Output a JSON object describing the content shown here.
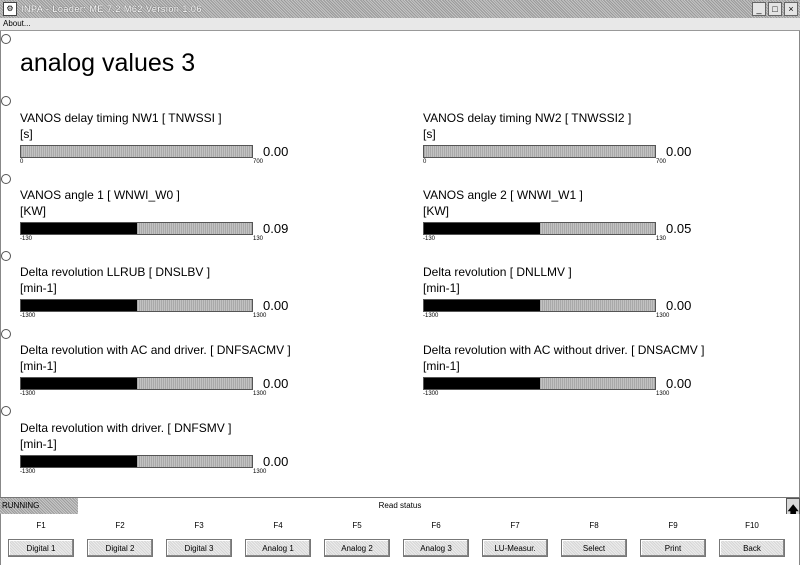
{
  "window": {
    "title": "INPA - Loader:  ME 7.2 M62 Version 1.06",
    "icon": "inpa-app-icon",
    "minimize": "_",
    "maximize": "□",
    "close": "×"
  },
  "menu": {
    "about": "About..."
  },
  "page": {
    "title": "analog values 3"
  },
  "measurements": [
    {
      "label": "VANOS delay timing NW1  [ TNWSSI ]",
      "unit": "[s]",
      "value": "0.00",
      "min": "0",
      "max": "700",
      "fill": 0.0
    },
    {
      "label": "VANOS delay timing NW2  [ TNWSSI2 ]",
      "unit": "[s]",
      "value": "0.00",
      "min": "0",
      "max": "700",
      "fill": 0.0
    },
    {
      "label": "VANOS angle 1  [ WNWI_W0 ]",
      "unit": "[KW]",
      "value": "0.09",
      "min": "-130",
      "max": "130",
      "fill": 0.5
    },
    {
      "label": "VANOS angle 2  [ WNWI_W1 ]",
      "unit": "[KW]",
      "value": "0.05",
      "min": "-130",
      "max": "130",
      "fill": 0.5
    },
    {
      "label": "Delta revolution LLRUB  [ DNSLBV ]",
      "unit": "[min-1]",
      "value": "0.00",
      "min": "-1300",
      "max": "1300",
      "fill": 0.5
    },
    {
      "label": "Delta revolution  [ DNLLMV ]",
      "unit": "[min-1]",
      "value": "0.00",
      "min": "-1300",
      "max": "1300",
      "fill": 0.5
    },
    {
      "label": "Delta revolution with AC and driver.  [ DNFSACMV ]",
      "unit": "[min-1]",
      "value": "0.00",
      "min": "-1300",
      "max": "1300",
      "fill": 0.5
    },
    {
      "label": "Delta revolution with AC without driver.  [ DNSACMV ]",
      "unit": "[min-1]",
      "value": "0.00",
      "min": "-1300",
      "max": "1300",
      "fill": 0.5
    },
    {
      "label": "Delta revolution with driver.  [ DNFSMV ]",
      "unit": "[min-1]",
      "value": "0.00",
      "min": "-1300",
      "max": "1300",
      "fill": 0.5
    }
  ],
  "status": {
    "state": "RUNNING",
    "text": "Read status",
    "up_arrow": "🡅"
  },
  "fkeys": [
    {
      "key": "F1",
      "label": "Digital 1"
    },
    {
      "key": "F2",
      "label": "Digital 2"
    },
    {
      "key": "F3",
      "label": "Digital 3"
    },
    {
      "key": "F4",
      "label": "Analog 1"
    },
    {
      "key": "F5",
      "label": "Analog 2"
    },
    {
      "key": "F6",
      "label": "Analog 3"
    },
    {
      "key": "F7",
      "label": "LU-Measur."
    },
    {
      "key": "F8",
      "label": "Select"
    },
    {
      "key": "F9",
      "label": "Print"
    },
    {
      "key": "F10",
      "label": "Back"
    }
  ]
}
